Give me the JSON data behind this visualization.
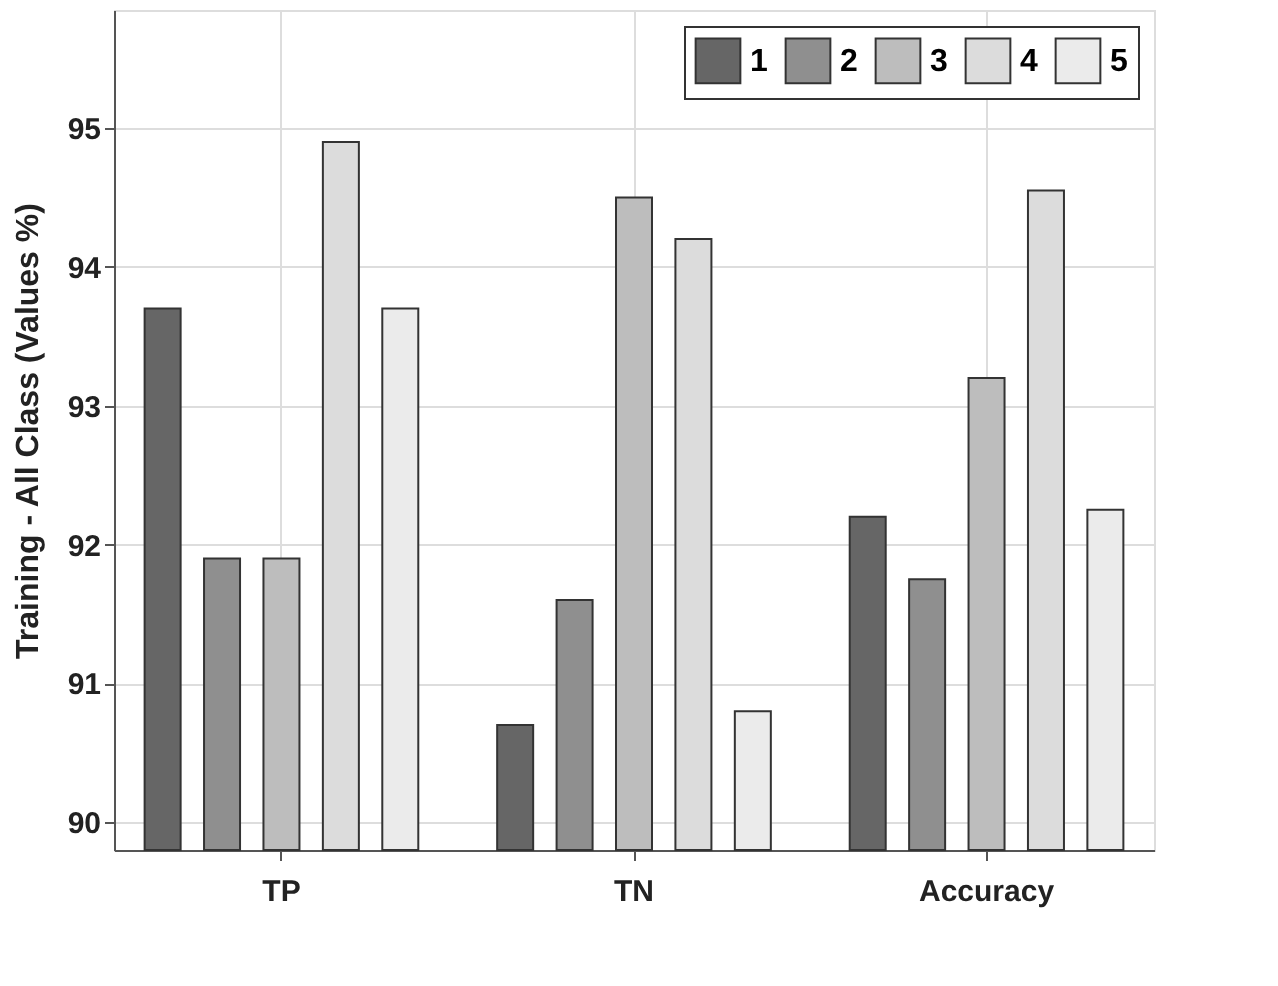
{
  "chart_data": {
    "type": "bar",
    "ylabel": "Training - All Class (Values %)",
    "categories": [
      "TP",
      "TN",
      "Accuracy"
    ],
    "series": [
      {
        "name": "1",
        "color": "#666666",
        "values": [
          93.7,
          90.7,
          92.2
        ]
      },
      {
        "name": "2",
        "color": "#8f8f8f",
        "values": [
          91.9,
          91.6,
          91.75
        ]
      },
      {
        "name": "3",
        "color": "#bdbdbd",
        "values": [
          91.9,
          94.5,
          93.2
        ]
      },
      {
        "name": "4",
        "color": "#dcdcdc",
        "values": [
          94.9,
          94.2,
          94.55
        ]
      },
      {
        "name": "5",
        "color": "#ebebeb",
        "values": [
          93.7,
          90.8,
          92.25
        ]
      }
    ],
    "ylim": [
      89.8,
      95.85
    ],
    "yticks": [
      90,
      91,
      92,
      93,
      94,
      95
    ],
    "grid": true,
    "legend": "top right"
  }
}
